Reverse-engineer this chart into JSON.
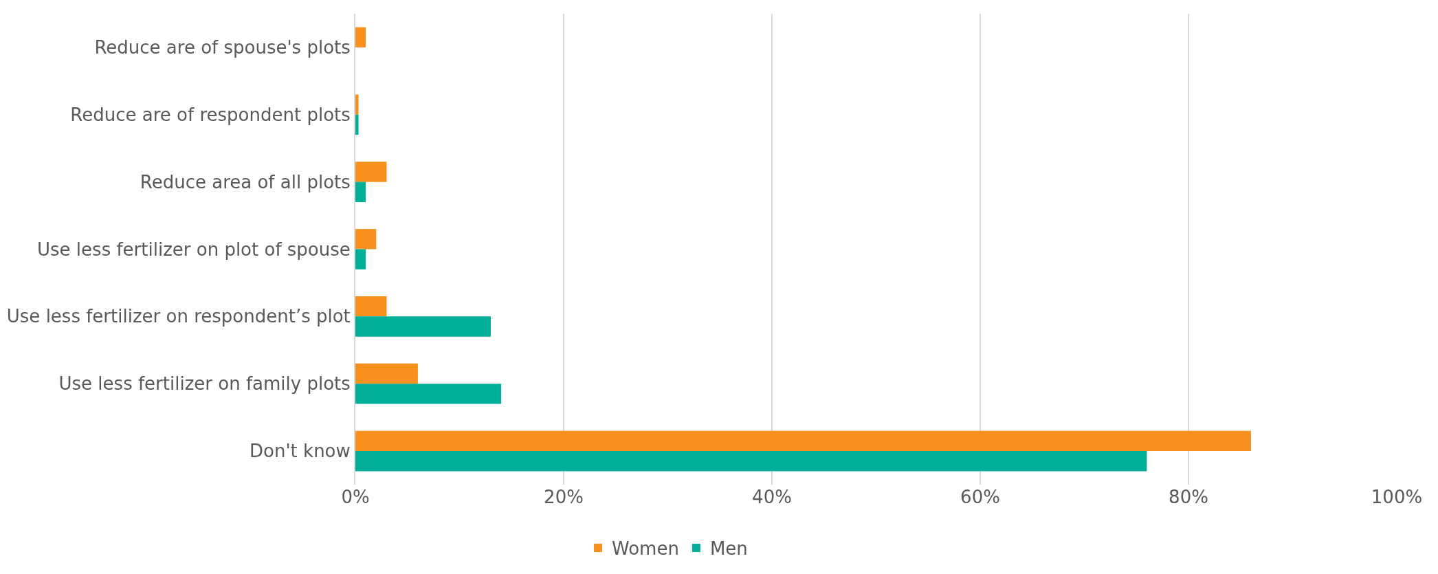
{
  "chart_data": {
    "type": "bar",
    "orientation": "horizontal",
    "categories": [
      "Reduce are of spouse's plots",
      "Reduce are of respondent plots",
      "Reduce area of all plots",
      "Use less fertilizer on plot of spouse",
      "Use less fertilizer on respondent’s plot",
      "Use less fertilizer on family plots",
      "Don't know"
    ],
    "series": [
      {
        "name": "Women",
        "color": "#f7901e",
        "values": [
          1.0,
          0.3,
          3.0,
          2.0,
          3.0,
          6.0,
          86.0
        ]
      },
      {
        "name": "Men",
        "color": "#00ae9a",
        "values": [
          0,
          0.3,
          1.0,
          1.0,
          13.0,
          14.0,
          76.0
        ]
      }
    ],
    "xlim": [
      0,
      100
    ],
    "xticks": [
      {
        "value": 0,
        "label": "0%"
      },
      {
        "value": 20,
        "label": "20%"
      },
      {
        "value": 40,
        "label": "40%"
      },
      {
        "value": 60,
        "label": "60%"
      },
      {
        "value": 80,
        "label": "80%"
      },
      {
        "value": 100,
        "label": "100%"
      }
    ],
    "grid": "x",
    "legend": "bottom"
  }
}
